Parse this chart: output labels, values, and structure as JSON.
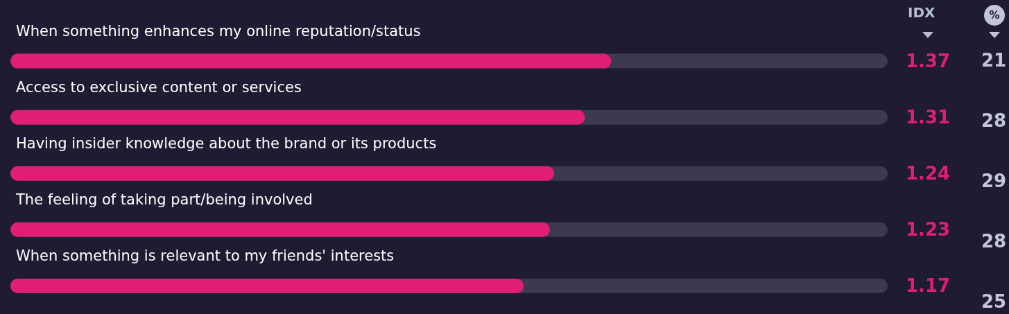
{
  "chart_data": {
    "type": "bar",
    "orientation": "horizontal",
    "categories": [
      "When something enhances my online reputation/status",
      "Access to exclusive content or services",
      "Having insider knowledge about the brand or its products",
      "The feeling of taking part/being involved",
      "When something is relevant to my friends' interests"
    ],
    "series": [
      {
        "name": "IDX",
        "color": "#e01e78",
        "values": [
          1.37,
          1.31,
          1.24,
          1.23,
          1.17
        ]
      }
    ],
    "xlim": [
      0,
      2
    ],
    "tick_labels": "y",
    "data_labels": true,
    "grid": false,
    "legend": false,
    "annotations": [
      "%",
      "21",
      "28",
      "29",
      "28",
      "25"
    ]
  }
}
